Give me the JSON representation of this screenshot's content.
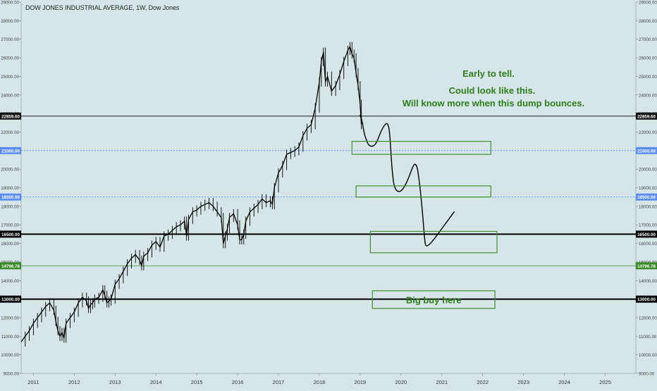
{
  "chart_data": {
    "type": "line",
    "title": "DOW JONES INDUSTRIAL AVERAGE, 1W, Dow Jones",
    "interval": "1W",
    "xlabel": "",
    "ylabel": "",
    "xlim": [
      2010.7,
      2025.75
    ],
    "ylim": [
      9000,
      29000
    ],
    "x_ticks": [
      "2011",
      "2012",
      "2013",
      "2014",
      "2015",
      "2016",
      "2017",
      "2018",
      "2019",
      "2020",
      "2021",
      "2022",
      "2023",
      "2024",
      "2025"
    ],
    "y_ticks": [
      "9000.00",
      "10000.00",
      "11000.00",
      "12000.00",
      "13000.00",
      "14000.00",
      "15000.00",
      "16000.00",
      "17000.00",
      "18000.00",
      "19000.00",
      "20000.00",
      "21000.00",
      "22000.00",
      "23000.00",
      "24000.00",
      "25000.00",
      "26000.00",
      "27000.00",
      "28000.00",
      "29000.00"
    ],
    "grid": false,
    "colors": {
      "background": "#d6e5e8",
      "price": "#000000",
      "dotted_level": "#5b8def",
      "level_green": "#3a8a2a",
      "annotation_green": "#2e7d1a",
      "box_green": "#3f8f2c"
    },
    "series": [
      {
        "x": [
          2010.7,
          2010.8,
          2010.9,
          2011.0,
          2011.1,
          2011.2,
          2011.3,
          2011.4,
          2011.5,
          2011.55,
          2011.6,
          2011.65,
          2011.7,
          2011.75,
          2011.8,
          2011.9,
          2012.0,
          2012.1,
          2012.2,
          2012.3,
          2012.35,
          2012.4,
          2012.45,
          2012.5,
          2012.6,
          2012.7,
          2012.75,
          2012.8,
          2012.85,
          2012.9,
          2013.0,
          2013.1,
          2013.2,
          2013.3,
          2013.4,
          2013.5,
          2013.6,
          2013.65,
          2013.7,
          2013.8,
          2013.9,
          2014.0,
          2014.1,
          2014.2,
          2014.3,
          2014.4,
          2014.5,
          2014.6,
          2014.7,
          2014.75,
          2014.8,
          2014.9,
          2015.0,
          2015.1,
          2015.2,
          2015.3,
          2015.4,
          2015.5,
          2015.6,
          2015.65,
          2015.7,
          2015.75,
          2015.8,
          2015.9,
          2016.0,
          2016.05,
          2016.1,
          2016.15,
          2016.2,
          2016.3,
          2016.4,
          2016.5,
          2016.6,
          2016.7,
          2016.8,
          2016.85,
          2016.9,
          2017.0,
          2017.1,
          2017.2,
          2017.3,
          2017.4,
          2017.5,
          2017.6,
          2017.7,
          2017.8,
          2017.9,
          2018.0,
          2018.05,
          2018.1,
          2018.15,
          2018.2,
          2018.3,
          2018.4,
          2018.5,
          2018.6,
          2018.7,
          2018.75,
          2018.8,
          2018.85,
          2018.9,
          2018.95,
          2019.0,
          2019.03
        ],
        "values": [
          10700,
          11000,
          11300,
          11700,
          12000,
          12300,
          12600,
          12800,
          12400,
          11800,
          11300,
          11000,
          11200,
          10900,
          11700,
          12000,
          12300,
          12800,
          13100,
          12900,
          12500,
          12700,
          12800,
          13000,
          13100,
          13500,
          13200,
          12800,
          12900,
          13000,
          13800,
          14100,
          14500,
          14900,
          15200,
          15400,
          15100,
          14800,
          15300,
          15500,
          15900,
          16100,
          15800,
          16400,
          16500,
          16700,
          16900,
          17000,
          17200,
          16400,
          17300,
          17700,
          17800,
          18000,
          18100,
          18200,
          18000,
          17700,
          17400,
          16000,
          16400,
          16800,
          17400,
          17600,
          17000,
          16200,
          16200,
          16500,
          17200,
          17700,
          17900,
          18100,
          18400,
          18200,
          18300,
          18100,
          19000,
          19800,
          20200,
          20800,
          20900,
          21000,
          21200,
          21800,
          22200,
          22400,
          23300,
          24700,
          25800,
          26300,
          24700,
          25000,
          24200,
          24500,
          25100,
          25800,
          26400,
          26600,
          26200,
          26000,
          25200,
          24500,
          23500,
          22400
        ]
      }
    ],
    "projection": {
      "x": [
        2019.0,
        2019.05,
        2019.1,
        2019.15,
        2019.2,
        2019.3,
        2019.4,
        2019.5,
        2019.6,
        2019.67,
        2019.72,
        2019.77,
        2019.8,
        2019.83,
        2019.9,
        2020.0,
        2020.1,
        2020.2,
        2020.3,
        2020.35,
        2020.4,
        2020.45,
        2020.5,
        2020.55,
        2020.58,
        2020.6,
        2020.63,
        2020.7,
        2020.8,
        2020.9,
        2021.0,
        2021.1,
        2021.2,
        2021.3
      ],
      "values": [
        22900,
        22600,
        21900,
        21600,
        21300,
        21200,
        21400,
        22000,
        22400,
        22500,
        22100,
        20300,
        19600,
        19100,
        18800,
        18800,
        19100,
        19600,
        20200,
        20300,
        20100,
        19300,
        18300,
        17000,
        16200,
        15900,
        15850,
        15950,
        16200,
        16500,
        16800,
        17100,
        17400,
        17700
      ]
    },
    "levels": [
      {
        "value": 22859.6,
        "label": "22859.60",
        "style": "solid-thin",
        "color": "#000000"
      },
      {
        "value": 21000,
        "label": "21000.00",
        "style": "dotted",
        "color": "#5b8def"
      },
      {
        "value": 18500,
        "label": "18500.00",
        "style": "dotted",
        "color": "#5b8def"
      },
      {
        "value": 16500,
        "label": "16500.00",
        "style": "solid-thick",
        "color": "#000000"
      },
      {
        "value": 14796.78,
        "label": "14796.78",
        "style": "solid-thin",
        "color": "#3a8a2a"
      },
      {
        "value": 13000,
        "label": "13000.00",
        "style": "solid-thick",
        "color": "#000000"
      }
    ],
    "boxes": [
      {
        "x1": 2018.8,
        "x2": 2022.2,
        "y1": 20800,
        "y2": 21500,
        "label": ""
      },
      {
        "x1": 2018.9,
        "x2": 2022.2,
        "y1": 18500,
        "y2": 19100,
        "label": ""
      },
      {
        "x1": 2019.25,
        "x2": 2022.35,
        "y1": 15500,
        "y2": 16650,
        "label": ""
      },
      {
        "x1": 2019.3,
        "x2": 2022.3,
        "y1": 12500,
        "y2": 13450,
        "label": "Big buy here"
      }
    ],
    "annotations": [
      "Early to tell.",
      "Could look like this.",
      "Will know more when this dump bounces."
    ]
  }
}
